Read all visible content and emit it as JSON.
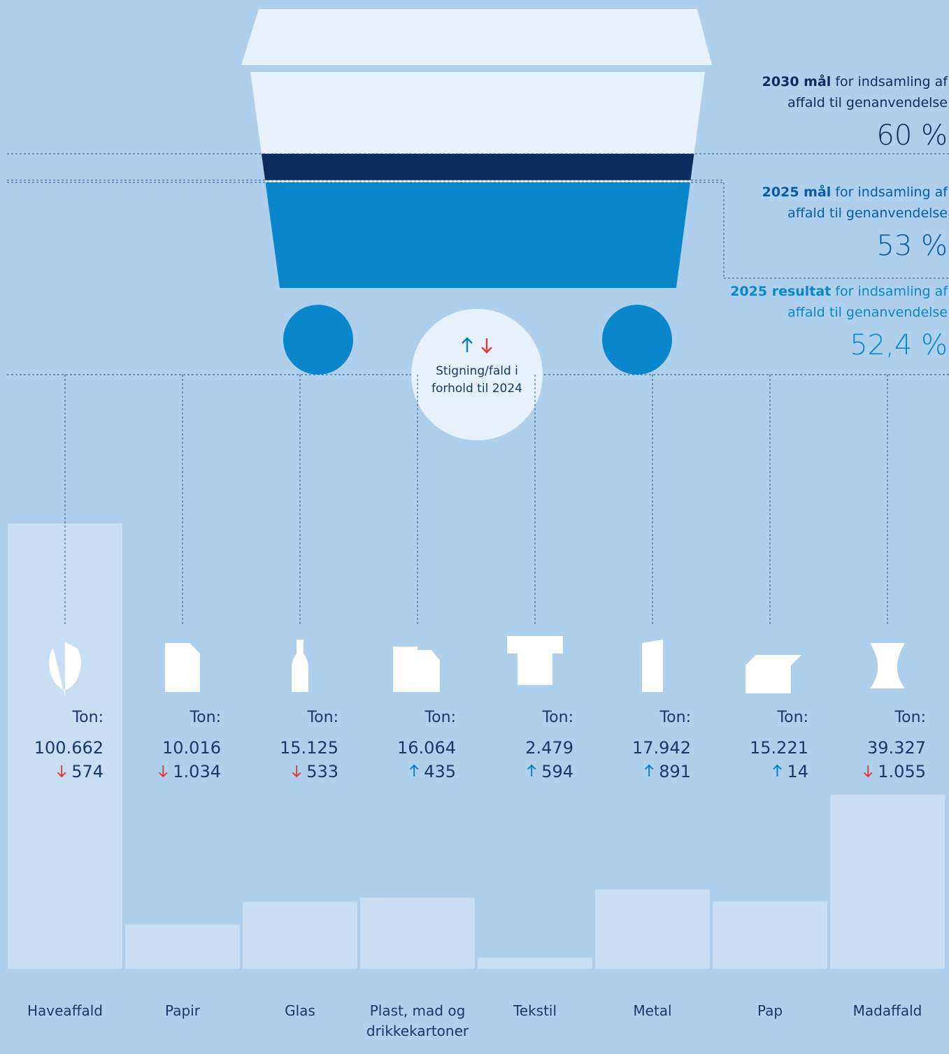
{
  "chart_data": {
    "type": "bar",
    "categories": [
      "Haveaffald",
      "Papir",
      "Glas",
      "Plast, mad og drikkekartoner",
      "Tekstil",
      "Metal",
      "Pap",
      "Madaffald"
    ],
    "values": [
      100662,
      10016,
      15125,
      16064,
      2479,
      17942,
      15221,
      39327
    ],
    "value_labels": [
      "100.662",
      "10.016",
      "15.125",
      "16.064",
      "2.479",
      "17.942",
      "15.221",
      "39.327"
    ],
    "unit_label": "Ton:",
    "change_values": [
      -574,
      -1034,
      -533,
      435,
      594,
      891,
      14,
      -1055
    ],
    "change_labels": [
      "574",
      "1.034",
      "533",
      "435",
      "594",
      "891",
      "14",
      "1.055"
    ],
    "change_legend": [
      "Stigning/fald i",
      "forhold til 2024"
    ],
    "color": "#c8def2",
    "targets": [
      {
        "label": "2030 mål",
        "line1": "for indsamling af",
        "line2": "affald til genanvendelse",
        "value": 60,
        "value_label": "60 %",
        "color": "#0b2d5e"
      },
      {
        "label": "2025 mål",
        "line1": "for indsamling af",
        "line2": "affald til genanvendelse",
        "value": 53,
        "value_label": "53 %",
        "color": "#0a5aa8"
      },
      {
        "label": "2025 resultat",
        "line1": "for indsamling af",
        "line2": "affald til genanvendelse",
        "value": 52.4,
        "value_label": "52,4 %",
        "color": "#0a86cc"
      }
    ]
  }
}
